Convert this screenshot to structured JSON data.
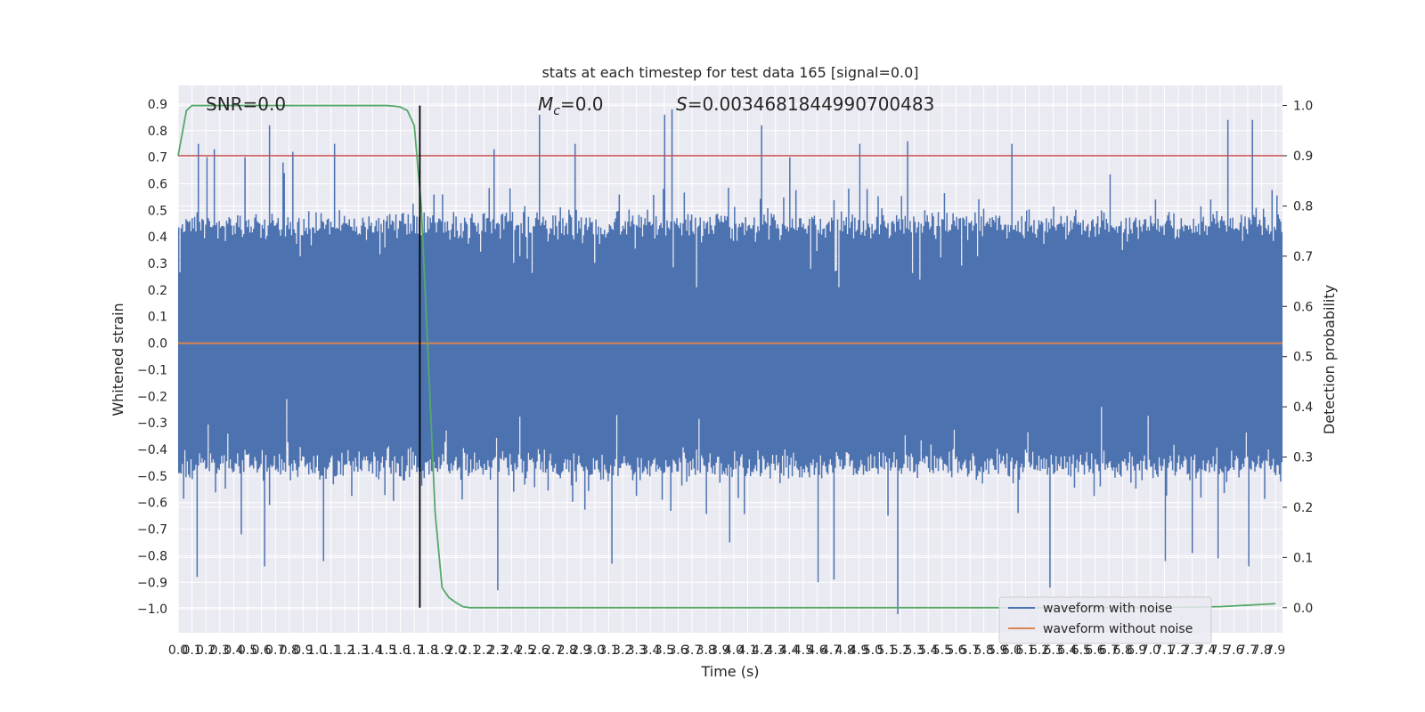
{
  "chart_data": {
    "type": "line",
    "title": "stats at each timestep for test data 165 [signal=0.0]",
    "xlabel": "Time (s)",
    "ylabel": "Whitened strain",
    "y2label": "Detection probability",
    "xlim": [
      0.0,
      7.95
    ],
    "ylim": [
      -1.09,
      0.97
    ],
    "y2lim": [
      -0.05,
      1.04
    ],
    "x_ticks": [
      0.0,
      0.1,
      0.2,
      0.3,
      0.4,
      0.5,
      0.6,
      0.7,
      0.8,
      0.9,
      1.0,
      1.1,
      1.2,
      1.3,
      1.4,
      1.5,
      1.6,
      1.7,
      1.8,
      1.9,
      2.0,
      2.1,
      2.2,
      2.3,
      2.4,
      2.5,
      2.6,
      2.7,
      2.8,
      2.9,
      3.0,
      3.1,
      3.2,
      3.3,
      3.4,
      3.5,
      3.6,
      3.7,
      3.8,
      3.9,
      4.0,
      4.1,
      4.2,
      4.3,
      4.4,
      4.5,
      4.6,
      4.7,
      4.8,
      4.9,
      5.0,
      5.1,
      5.2,
      5.3,
      5.4,
      5.5,
      5.6,
      5.7,
      5.8,
      5.9,
      6.0,
      6.1,
      6.2,
      6.3,
      6.4,
      6.5,
      6.6,
      6.7,
      6.8,
      6.9,
      7.0,
      7.1,
      7.2,
      7.3,
      7.4,
      7.5,
      7.6,
      7.7,
      7.8,
      7.9
    ],
    "y_ticks": [
      0.9,
      0.8,
      0.7,
      0.6,
      0.5,
      0.4,
      0.3,
      0.2,
      0.1,
      0.0,
      -0.1,
      -0.2,
      -0.3,
      -0.4,
      -0.5,
      -0.6,
      -0.7,
      -0.8,
      -0.9,
      -1.0
    ],
    "y2_ticks": [
      1.0,
      0.9,
      0.8,
      0.7,
      0.6,
      0.5,
      0.4,
      0.3,
      0.2,
      0.1,
      0.0
    ],
    "grid": true,
    "legend_position": "lower-right",
    "annotations": {
      "snr": "SNR=0.0",
      "mc_symbol": "M",
      "mc_sub": "c",
      "mc_value": "=0.0",
      "s_symbol": "S",
      "s_value": "=0.0034681844990700483"
    },
    "series": [
      {
        "name": "waveform with noise",
        "color": "#4c72b0",
        "axis": "left",
        "style": "dense-noise",
        "envelope_top_typical": 0.42,
        "envelope_bottom_typical": -0.44,
        "peaks": [
          [
            0.14,
            0.75
          ],
          [
            0.2,
            0.7
          ],
          [
            0.26,
            0.73
          ],
          [
            0.48,
            0.7
          ],
          [
            0.65,
            0.82
          ],
          [
            0.75,
            0.68
          ],
          [
            0.82,
            0.72
          ],
          [
            1.12,
            0.75
          ],
          [
            2.27,
            0.73
          ],
          [
            2.6,
            0.86
          ],
          [
            2.85,
            0.75
          ],
          [
            3.5,
            0.86
          ],
          [
            3.55,
            0.88
          ],
          [
            4.2,
            0.82
          ],
          [
            4.4,
            0.7
          ],
          [
            4.9,
            0.75
          ],
          [
            5.25,
            0.76
          ],
          [
            6.0,
            0.75
          ],
          [
            7.55,
            0.84
          ],
          [
            7.73,
            0.84
          ]
        ],
        "troughs": [
          [
            0.13,
            -0.88
          ],
          [
            0.45,
            -0.72
          ],
          [
            0.62,
            -0.84
          ],
          [
            1.04,
            -0.82
          ],
          [
            2.3,
            -0.93
          ],
          [
            3.12,
            -0.83
          ],
          [
            3.97,
            -0.75
          ],
          [
            4.6,
            -0.9
          ],
          [
            4.72,
            -0.89
          ],
          [
            5.18,
            -1.02
          ],
          [
            6.27,
            -0.92
          ],
          [
            7.1,
            -0.82
          ],
          [
            7.3,
            -0.79
          ],
          [
            7.48,
            -0.81
          ],
          [
            7.7,
            -0.84
          ]
        ]
      },
      {
        "name": "waveform without noise",
        "color": "#dd8452",
        "axis": "left",
        "x": [
          0.0,
          7.95
        ],
        "y": [
          0.0,
          0.0
        ]
      },
      {
        "name": "",
        "color": "#55a868",
        "axis": "right",
        "x": [
          0.0,
          0.06,
          0.1,
          0.15,
          0.3,
          0.6,
          1.0,
          1.2,
          1.4,
          1.5,
          1.55,
          1.6,
          1.65,
          1.7,
          1.75,
          1.8,
          1.85,
          1.9,
          1.95,
          2.0,
          2.05,
          2.1,
          2.2,
          2.3,
          3.0,
          4.0,
          5.0,
          6.0,
          7.0,
          7.3,
          7.5,
          7.7,
          7.9
        ],
        "y": [
          0.9,
          0.99,
          1.0,
          1.0,
          1.0,
          1.0,
          1.0,
          1.0,
          1.0,
          1.0,
          0.999,
          0.997,
          0.99,
          0.96,
          0.8,
          0.5,
          0.19,
          0.04,
          0.02,
          0.01,
          0.002,
          0.0,
          0.0,
          0.0,
          0.0,
          0.0,
          0.0,
          0.0,
          0.0,
          0.001,
          0.002,
          0.005,
          0.008
        ]
      }
    ],
    "reference_lines": {
      "threshold": {
        "axis": "right",
        "y": 0.9,
        "color": "#c44e52"
      },
      "marker_time": {
        "x": 1.74,
        "color": "#000000"
      }
    }
  }
}
